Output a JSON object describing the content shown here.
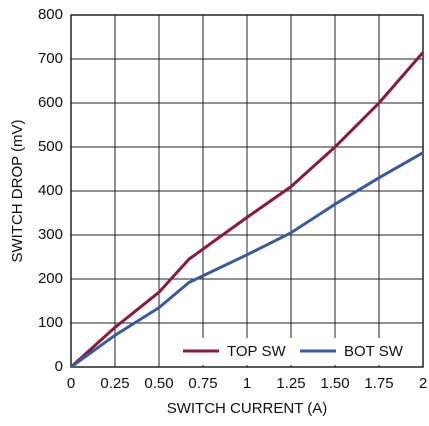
{
  "chart_data": {
    "type": "line",
    "xlabel": "SWITCH CURRENT (A)",
    "ylabel": "SWITCH DROP (mV)",
    "x": [
      0,
      0.25,
      0.5,
      0.67,
      1,
      1.25,
      1.5,
      1.75,
      2
    ],
    "series": [
      {
        "name": "TOP SW",
        "color": "#8b1a3a",
        "values": [
          0,
          90,
          170,
          245,
          340,
          410,
          500,
          600,
          715
        ]
      },
      {
        "name": "BOT SW",
        "color": "#3a5aa0",
        "values": [
          0,
          72,
          135,
          192,
          255,
          305,
          370,
          430,
          487
        ]
      }
    ],
    "xlim": [
      0,
      2
    ],
    "xticks": [
      0,
      0.25,
      {
        "value": 0.5,
        "label": "0.50"
      },
      0.75,
      1,
      1.25,
      {
        "value": 1.5,
        "label": "1.50"
      },
      1.75,
      2
    ],
    "ylim": [
      0,
      800
    ],
    "yticks": [
      0,
      100,
      200,
      300,
      400,
      500,
      600,
      700,
      800
    ],
    "grid": true,
    "legend": "lower right"
  }
}
